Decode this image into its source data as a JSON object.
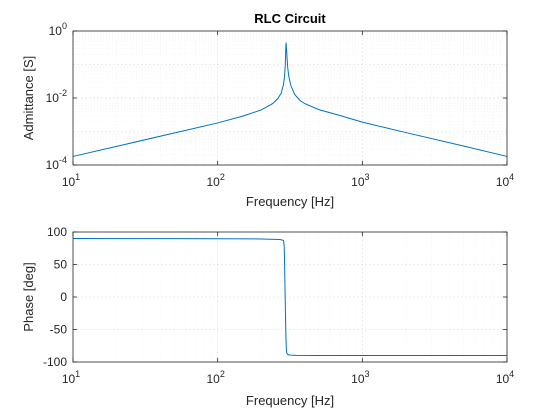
{
  "chart_data": [
    {
      "type": "line",
      "title": "RLC Circuit",
      "xlabel": "Frequency [Hz]",
      "ylabel": "Admittance [S]",
      "x_scale": "log",
      "y_scale": "log",
      "xlim": [
        10,
        10000
      ],
      "ylim": [
        0.0001,
        1
      ],
      "grid": true,
      "x_ticks": [
        {
          "base": "10",
          "exp": "1",
          "value": 10
        },
        {
          "base": "10",
          "exp": "2",
          "value": 100
        },
        {
          "base": "10",
          "exp": "3",
          "value": 1000
        },
        {
          "base": "10",
          "exp": "4",
          "value": 10000
        }
      ],
      "y_ticks": [
        {
          "base": "10",
          "exp": "-4",
          "value": 0.0001
        },
        {
          "base": "10",
          "exp": "-2",
          "value": 0.01
        },
        {
          "base": "10",
          "exp": "0",
          "value": 1
        }
      ],
      "series": [
        {
          "color": "#0072bd",
          "x": [
            10,
            20,
            50,
            100,
            150,
            200,
            240,
            260,
            275,
            285,
            290,
            293,
            295,
            296,
            297,
            299,
            302,
            305,
            310,
            320,
            340,
            370,
            400,
            500,
            700,
            1000,
            2000,
            5000,
            10000
          ],
          "y": [
            0.00018,
            0.00036,
            0.0009,
            0.0018,
            0.0029,
            0.0044,
            0.0068,
            0.0095,
            0.014,
            0.025,
            0.045,
            0.09,
            0.2,
            0.35,
            0.45,
            0.3,
            0.15,
            0.08,
            0.045,
            0.024,
            0.013,
            0.0085,
            0.0068,
            0.0045,
            0.003,
            0.0019,
            0.00093,
            0.00037,
            0.00018
          ]
        }
      ]
    },
    {
      "type": "line",
      "xlabel": "Frequency [Hz]",
      "ylabel": "Phase [deg]",
      "x_scale": "log",
      "y_scale": "linear",
      "xlim": [
        10,
        10000
      ],
      "ylim": [
        -100,
        100
      ],
      "grid": true,
      "x_ticks": [
        {
          "base": "10",
          "exp": "1",
          "value": 10
        },
        {
          "base": "10",
          "exp": "2",
          "value": 100
        },
        {
          "base": "10",
          "exp": "3",
          "value": 1000
        },
        {
          "base": "10",
          "exp": "4",
          "value": 10000
        }
      ],
      "y_ticks": [
        {
          "label": "100",
          "value": 100
        },
        {
          "label": "50",
          "value": 50
        },
        {
          "label": "0",
          "value": 0
        },
        {
          "label": "-50",
          "value": -50
        },
        {
          "label": "-100",
          "value": -100
        }
      ],
      "series": [
        {
          "color": "#0072bd",
          "x": [
            10,
            50,
            100,
            200,
            270,
            285,
            288,
            290,
            292,
            295,
            297,
            299,
            301,
            305,
            310,
            320,
            350,
            500,
            1000,
            10000
          ],
          "y": [
            90,
            89.8,
            89.6,
            89.3,
            88.5,
            87.0,
            80,
            55,
            15,
            -40,
            -70,
            -83,
            -86.5,
            -88.5,
            -89.0,
            -89.4,
            -89.8,
            -90,
            -90,
            -90
          ]
        }
      ]
    }
  ]
}
